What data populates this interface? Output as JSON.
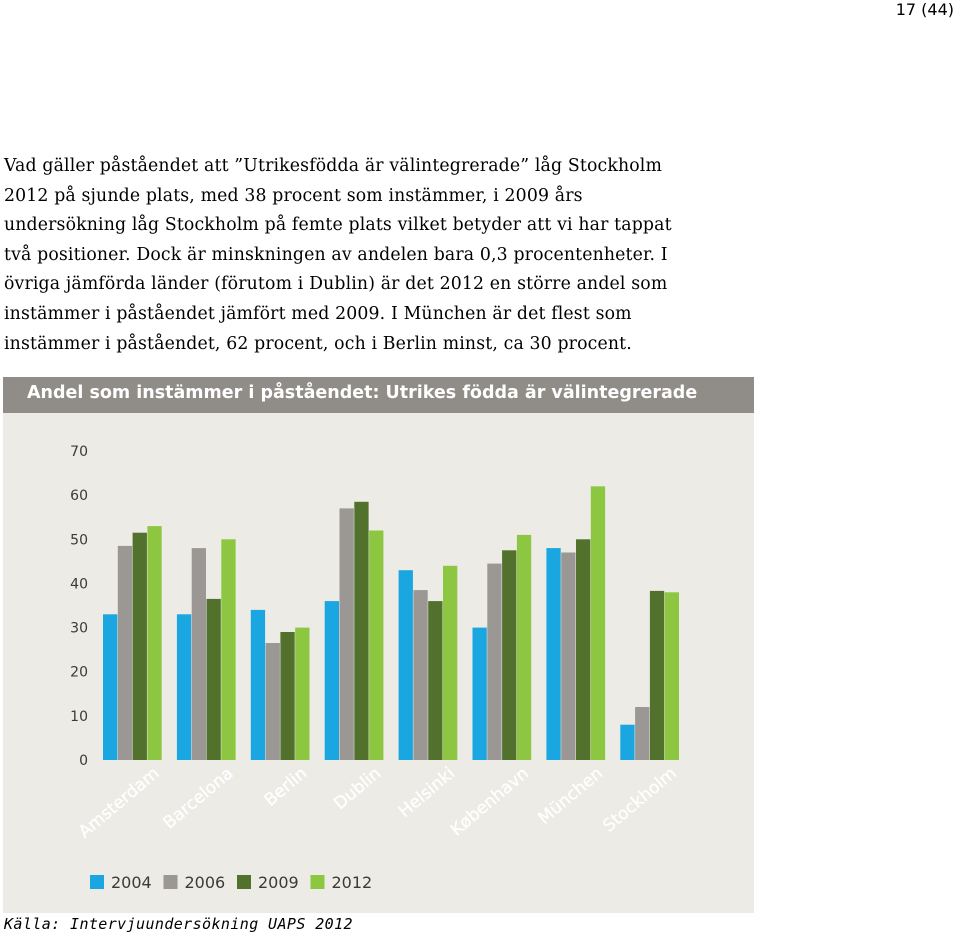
{
  "page_number": "17 (44)",
  "paragraph_lines": [
    "Vad gäller påståendet att ”Utrikesfödda är välintegrerade” låg Stockholm",
    "2012 på sjunde plats, med 38 procent som instämmer, i 2009 års",
    "undersökning låg Stockholm på femte plats vilket betyder att vi har tappat",
    "två positioner. Dock är minskningen av andelen bara 0,3 procentenheter. I",
    "övriga jämförda länder (förutom i Dublin) är det 2012 en större andel som",
    "instämmer i påståendet jämfört med 2009. I München är det flest som",
    "instämmer i påståendet, 62  procent, och i Berlin minst, ca 30 procent."
  ],
  "source": "Källa: Intervjuundersökning UAPS 2012",
  "chart_data": {
    "type": "bar",
    "title": "Andel som instämmer i påståendet: Utrikes födda är välintegrerade",
    "categories": [
      "Amsterdam",
      "Barcelona",
      "Berlin",
      "Dublin",
      "Helsinki",
      "København",
      "München",
      "Stockholm"
    ],
    "series": [
      {
        "name": "2004",
        "color": "#1aa6e0",
        "values": [
          33,
          33,
          34,
          36,
          43,
          30,
          48,
          8
        ]
      },
      {
        "name": "2006",
        "color": "#9a9794",
        "values": [
          48.5,
          48,
          26.5,
          57,
          38.5,
          44.5,
          47,
          12
        ]
      },
      {
        "name": "2009",
        "color": "#52712d",
        "values": [
          51.5,
          36.5,
          29,
          58.5,
          36,
          47.5,
          50,
          38.3
        ]
      },
      {
        "name": "2012",
        "color": "#8dc641",
        "values": [
          53,
          50,
          30,
          52,
          44,
          51,
          62,
          38
        ]
      }
    ],
    "y_ticks": [
      0,
      10,
      20,
      30,
      40,
      50,
      60,
      70
    ],
    "ylim": [
      0,
      70
    ],
    "grid": false,
    "legend_position": "bottom-left",
    "background": "#edebe6",
    "title_bar_color": "#908d89"
  }
}
